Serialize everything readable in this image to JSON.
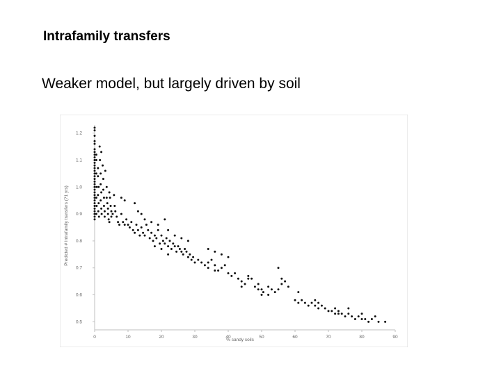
{
  "slide": {
    "title": "Intrafamily transfers",
    "subtitle": "Weaker model, but largely driven by soil"
  },
  "chart_data": {
    "type": "scatter",
    "title": "",
    "xlabel": "% sandy soils",
    "ylabel": "Predicted # Intrafamily transfers (?1 yrs)",
    "xlim": [
      0,
      90
    ],
    "ylim": [
      0.47,
      1.23
    ],
    "x_ticks": [
      "0",
      "10",
      "20",
      "30",
      "40",
      "50",
      "60",
      "70",
      "80",
      "90"
    ],
    "y_ticks": [
      "0.5",
      "0.6",
      "0.7",
      "0.8",
      "0.9",
      "1.0",
      "1.1",
      "1.2"
    ],
    "grid": false,
    "marker_color": "#111111",
    "series": [
      {
        "points": [
          [
            0,
            1.22
          ],
          [
            0,
            1.21
          ],
          [
            0,
            1.19
          ],
          [
            0,
            1.17
          ],
          [
            0,
            1.16
          ],
          [
            0,
            1.14
          ],
          [
            0,
            1.13
          ],
          [
            0,
            1.12
          ],
          [
            0,
            1.11
          ],
          [
            0,
            1.1
          ],
          [
            0,
            1.09
          ],
          [
            0,
            1.08
          ],
          [
            0,
            1.07
          ],
          [
            0,
            1.06
          ],
          [
            0,
            1.05
          ],
          [
            0,
            1.04
          ],
          [
            0,
            1.03
          ],
          [
            0,
            1.02
          ],
          [
            0,
            1.01
          ],
          [
            0,
            1.0
          ],
          [
            0,
            0.99
          ],
          [
            0,
            0.98
          ],
          [
            0,
            0.97
          ],
          [
            0,
            0.96
          ],
          [
            0,
            0.95
          ],
          [
            0,
            0.94
          ],
          [
            0,
            0.93
          ],
          [
            0,
            0.92
          ],
          [
            0,
            0.91
          ],
          [
            0,
            0.9
          ],
          [
            0,
            0.89
          ],
          [
            0,
            0.88
          ],
          [
            0.5,
            1.12
          ],
          [
            0.5,
            1.1
          ],
          [
            0.5,
            1.05
          ],
          [
            0.6,
            1.0
          ],
          [
            0.5,
            0.96
          ],
          [
            0.6,
            0.93
          ],
          [
            0.5,
            0.9
          ],
          [
            1,
            1.07
          ],
          [
            1,
            1.04
          ],
          [
            1.2,
            1.0
          ],
          [
            1,
            0.97
          ],
          [
            1.2,
            0.94
          ],
          [
            1.1,
            0.91
          ],
          [
            1.3,
            0.89
          ],
          [
            1.6,
            1.1
          ],
          [
            1.8,
            1.05
          ],
          [
            1.8,
            1.01
          ],
          [
            2,
            0.98
          ],
          [
            1.8,
            0.95
          ],
          [
            2,
            0.92
          ],
          [
            2.1,
            0.9
          ],
          [
            2.4,
            1.08
          ],
          [
            2.6,
            1.03
          ],
          [
            2.6,
            0.99
          ],
          [
            2.8,
            0.96
          ],
          [
            2.8,
            0.93
          ],
          [
            3,
            0.91
          ],
          [
            3,
            0.89
          ],
          [
            3.2,
            1.06
          ],
          [
            3.6,
            1.0
          ],
          [
            3.6,
            0.96
          ],
          [
            3.8,
            0.94
          ],
          [
            4,
            0.92
          ],
          [
            4,
            0.9
          ],
          [
            4.2,
            0.88
          ],
          [
            4.4,
            0.98
          ],
          [
            4.6,
            0.96
          ],
          [
            4.8,
            0.93
          ],
          [
            5,
            0.91
          ],
          [
            5,
            0.89
          ],
          [
            4.4,
            0.87
          ],
          [
            5.4,
            0.9
          ],
          [
            5.8,
            0.97
          ],
          [
            6,
            0.93
          ],
          [
            6.2,
            0.91
          ],
          [
            6.6,
            0.89
          ],
          [
            7,
            0.87
          ],
          [
            7.4,
            0.86
          ],
          [
            8,
            0.9
          ],
          [
            8.5,
            0.87
          ],
          [
            9,
            0.86
          ],
          [
            9.5,
            0.88
          ],
          [
            10,
            0.86
          ],
          [
            10.5,
            0.85
          ],
          [
            11,
            0.87
          ],
          [
            11.5,
            0.84
          ],
          [
            12,
            0.83
          ],
          [
            12.5,
            0.86
          ],
          [
            13,
            0.84
          ],
          [
            13.5,
            0.82
          ],
          [
            14,
            0.85
          ],
          [
            14.5,
            0.83
          ],
          [
            15,
            0.82
          ],
          [
            15.5,
            0.86
          ],
          [
            16,
            0.84
          ],
          [
            16.5,
            0.81
          ],
          [
            17,
            0.83
          ],
          [
            17.5,
            0.8
          ],
          [
            18,
            0.82
          ],
          [
            18.5,
            0.81
          ],
          [
            19,
            0.84
          ],
          [
            19.5,
            0.79
          ],
          [
            20,
            0.82
          ],
          [
            20.5,
            0.8
          ],
          [
            21,
            0.79
          ],
          [
            21.5,
            0.81
          ],
          [
            22,
            0.78
          ],
          [
            22.5,
            0.8
          ],
          [
            23,
            0.77
          ],
          [
            23.5,
            0.79
          ],
          [
            24,
            0.78
          ],
          [
            24.5,
            0.76
          ],
          [
            25,
            0.78
          ],
          [
            25.5,
            0.77
          ],
          [
            26,
            0.76
          ],
          [
            26.5,
            0.75
          ],
          [
            27,
            0.77
          ],
          [
            27.5,
            0.76
          ],
          [
            28,
            0.74
          ],
          [
            28.5,
            0.75
          ],
          [
            29,
            0.73
          ],
          [
            29.5,
            0.74
          ],
          [
            30,
            0.72
          ],
          [
            31,
            0.73
          ],
          [
            32,
            0.72
          ],
          [
            33,
            0.71
          ],
          [
            34,
            0.72
          ],
          [
            35,
            0.73
          ],
          [
            36,
            0.71
          ],
          [
            37,
            0.69
          ],
          [
            38,
            0.7
          ],
          [
            39,
            0.71
          ],
          [
            40,
            0.68
          ],
          [
            41,
            0.67
          ],
          [
            42,
            0.68
          ],
          [
            43,
            0.66
          ],
          [
            44,
            0.65
          ],
          [
            45,
            0.64
          ],
          [
            46,
            0.66
          ],
          [
            48,
            0.63
          ],
          [
            49,
            0.64
          ],
          [
            50,
            0.62
          ],
          [
            50.5,
            0.61
          ],
          [
            52,
            0.63
          ],
          [
            53,
            0.62
          ],
          [
            54,
            0.61
          ],
          [
            55,
            0.62
          ],
          [
            56,
            0.64
          ],
          [
            57,
            0.65
          ],
          [
            60,
            0.58
          ],
          [
            61,
            0.57
          ],
          [
            62,
            0.58
          ],
          [
            63,
            0.57
          ],
          [
            64,
            0.56
          ],
          [
            65,
            0.57
          ],
          [
            66,
            0.56
          ],
          [
            67,
            0.55
          ],
          [
            68,
            0.56
          ],
          [
            69,
            0.55
          ],
          [
            70,
            0.54
          ],
          [
            71,
            0.54
          ],
          [
            72,
            0.53
          ],
          [
            73,
            0.54
          ],
          [
            74,
            0.53
          ],
          [
            75,
            0.52
          ],
          [
            76,
            0.53
          ],
          [
            77,
            0.52
          ],
          [
            78,
            0.51
          ],
          [
            79,
            0.52
          ],
          [
            80,
            0.51
          ],
          [
            81,
            0.51
          ],
          [
            82,
            0.5
          ],
          [
            83,
            0.51
          ],
          [
            85,
            0.5
          ],
          [
            2,
            1.13
          ],
          [
            1.5,
            1.15
          ],
          [
            8,
            0.96
          ],
          [
            9,
            0.95
          ],
          [
            12,
            0.94
          ],
          [
            13,
            0.91
          ],
          [
            14,
            0.9
          ],
          [
            15,
            0.88
          ],
          [
            17,
            0.87
          ],
          [
            19,
            0.86
          ],
          [
            21,
            0.88
          ],
          [
            22,
            0.84
          ],
          [
            24,
            0.82
          ],
          [
            26,
            0.81
          ],
          [
            28,
            0.8
          ],
          [
            18,
            0.78
          ],
          [
            20,
            0.77
          ],
          [
            22,
            0.75
          ],
          [
            34,
            0.77
          ],
          [
            36,
            0.76
          ],
          [
            38,
            0.75
          ],
          [
            40,
            0.74
          ],
          [
            34,
            0.7
          ],
          [
            36,
            0.69
          ],
          [
            46,
            0.67
          ],
          [
            47,
            0.66
          ],
          [
            49,
            0.62
          ],
          [
            50,
            0.6
          ],
          [
            55,
            0.7
          ],
          [
            56,
            0.66
          ],
          [
            58,
            0.63
          ],
          [
            61,
            0.61
          ],
          [
            66,
            0.58
          ],
          [
            67,
            0.57
          ],
          [
            72,
            0.55
          ],
          [
            73,
            0.53
          ],
          [
            76,
            0.55
          ],
          [
            80,
            0.53
          ],
          [
            84,
            0.52
          ],
          [
            87,
            0.5
          ],
          [
            44,
            0.63
          ],
          [
            52,
            0.6
          ]
        ]
      }
    ]
  }
}
